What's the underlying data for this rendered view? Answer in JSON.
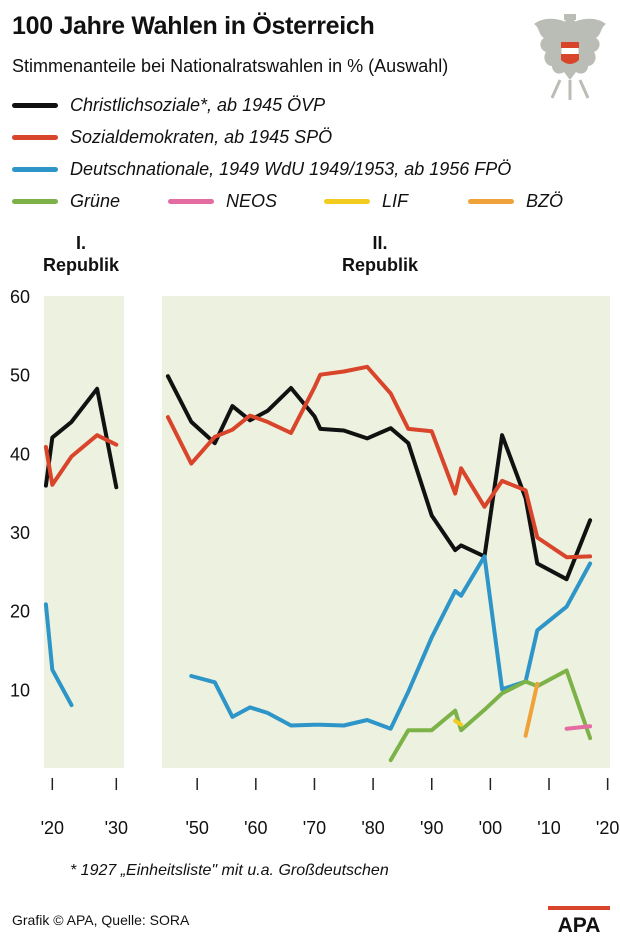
{
  "header": {
    "title": "100 Jahre Wahlen in Österreich",
    "subtitle": "Stimmenanteile bei Nationalratswahlen in % (Auswahl)"
  },
  "legend": [
    {
      "label": "Christlichsoziale*, ab 1945 ÖVP",
      "color": "#111111"
    },
    {
      "label": "Sozialdemokraten, ab 1945 SPÖ",
      "color": "#d9452b"
    },
    {
      "label": "Deutschnationale, 1949 WdU 1949/1953, ab 1956 FPÖ",
      "color": "#2e95c8"
    },
    {
      "label": "Grüne",
      "color": "#7db248"
    },
    {
      "label": "NEOS",
      "color": "#e56ba3"
    },
    {
      "label": "LIF",
      "color": "#f2cd1f"
    },
    {
      "label": "BZÖ",
      "color": "#f0a23a"
    }
  ],
  "sections": {
    "first_republic": "I.\nRepublik",
    "second_republic": "II.\nRepublik"
  },
  "footnote": "* 1927 „Einheitsliste\" mit u.a. Großdeutschen",
  "credit": "Grafik © APA, Quelle: SORA",
  "logo_text": "APA",
  "chart_data": {
    "type": "line",
    "ylim": [
      0,
      60
    ],
    "yticks": [
      10,
      20,
      30,
      40,
      50,
      60
    ],
    "grid": false,
    "panels": [
      {
        "name": "I. Republik",
        "xlim": [
          1919,
          1931
        ],
        "xticks": [
          1920,
          1930
        ],
        "xtick_labels": [
          "'20",
          "'30"
        ],
        "series": [
          {
            "name": "Christlichsoziale*, ab 1945 ÖVP",
            "color": "#111111",
            "x": [
              1919,
              1920,
              1923,
              1927,
              1930
            ],
            "y": [
              35.9,
              42.0,
              44.0,
              48.2,
              35.7
            ]
          },
          {
            "name": "Sozialdemokraten, ab 1945 SPÖ",
            "color": "#d9452b",
            "x": [
              1919,
              1920,
              1923,
              1927,
              1930
            ],
            "y": [
              40.8,
              36.0,
              39.6,
              42.3,
              41.1
            ]
          },
          {
            "name": "Deutschnationale, 1949 WdU 1949/1953, ab 1956 FPÖ",
            "color": "#2e95c8",
            "x": [
              1919,
              1920,
              1923
            ],
            "y": [
              20.8,
              12.5,
              8.0
            ]
          }
        ]
      },
      {
        "name": "II. Republik",
        "xlim": [
          1945,
          2020
        ],
        "xticks": [
          1950,
          1960,
          1970,
          1980,
          1990,
          2000,
          2010,
          2020
        ],
        "xtick_labels": [
          "'50",
          "'60",
          "'70",
          "'80",
          "'90",
          "'00",
          "'10",
          "'20"
        ],
        "series": [
          {
            "name": "Christlichsoziale*, ab 1945 ÖVP",
            "color": "#111111",
            "x": [
              1945,
              1949,
              1953,
              1956,
              1959,
              1962,
              1966,
              1970,
              1971,
              1975,
              1979,
              1983,
              1986,
              1990,
              1994,
              1995,
              1999,
              2002,
              2006,
              2008,
              2013,
              2017
            ],
            "y": [
              49.8,
              44.0,
              41.3,
              46.0,
              44.2,
              45.4,
              48.3,
              44.7,
              43.1,
              42.9,
              41.9,
              43.2,
              41.3,
              32.1,
              27.7,
              28.3,
              26.9,
              42.3,
              34.3,
              26.0,
              24.0,
              31.5
            ]
          },
          {
            "name": "Sozialdemokraten, ab 1945 SPÖ",
            "color": "#d9452b",
            "x": [
              1945,
              1949,
              1953,
              1956,
              1959,
              1962,
              1966,
              1970,
              1971,
              1975,
              1979,
              1983,
              1986,
              1990,
              1994,
              1995,
              1999,
              2002,
              2006,
              2008,
              2013,
              2017
            ],
            "y": [
              44.6,
              38.7,
              42.1,
              43.0,
              44.8,
              44.0,
              42.6,
              48.4,
              50.0,
              50.4,
              51.0,
              47.6,
              43.1,
              42.8,
              34.9,
              38.1,
              33.2,
              36.5,
              35.3,
              29.3,
              26.8,
              26.9
            ]
          },
          {
            "name": "Deutschnationale, 1949 WdU 1949/1953, ab 1956 FPÖ",
            "color": "#2e95c8",
            "x": [
              1949,
              1953,
              1956,
              1959,
              1962,
              1966,
              1970,
              1971,
              1975,
              1979,
              1983,
              1986,
              1990,
              1994,
              1995,
              1999,
              2002,
              2006,
              2008,
              2013,
              2017
            ],
            "y": [
              11.7,
              10.9,
              6.5,
              7.7,
              7.0,
              5.4,
              5.5,
              5.5,
              5.4,
              6.1,
              5.0,
              9.7,
              16.6,
              22.5,
              21.9,
              26.9,
              10.0,
              11.0,
              17.5,
              20.5,
              26.0
            ]
          },
          {
            "name": "Grüne",
            "color": "#7db248",
            "x": [
              1983,
              1986,
              1990,
              1994,
              1995,
              1999,
              2002,
              2006,
              2008,
              2013,
              2017
            ],
            "y": [
              1.0,
              4.8,
              4.8,
              7.3,
              4.8,
              7.4,
              9.5,
              11.0,
              10.4,
              12.4,
              3.8
            ]
          },
          {
            "name": "NEOS",
            "color": "#e56ba3",
            "x": [
              2013,
              2017
            ],
            "y": [
              5.0,
              5.3
            ]
          },
          {
            "name": "LIF",
            "color": "#f2cd1f",
            "x": [
              1994,
              1995
            ],
            "y": [
              6.0,
              5.5
            ]
          },
          {
            "name": "BZÖ",
            "color": "#f0a23a",
            "x": [
              2006,
              2008
            ],
            "y": [
              4.1,
              10.7
            ]
          }
        ]
      }
    ]
  }
}
